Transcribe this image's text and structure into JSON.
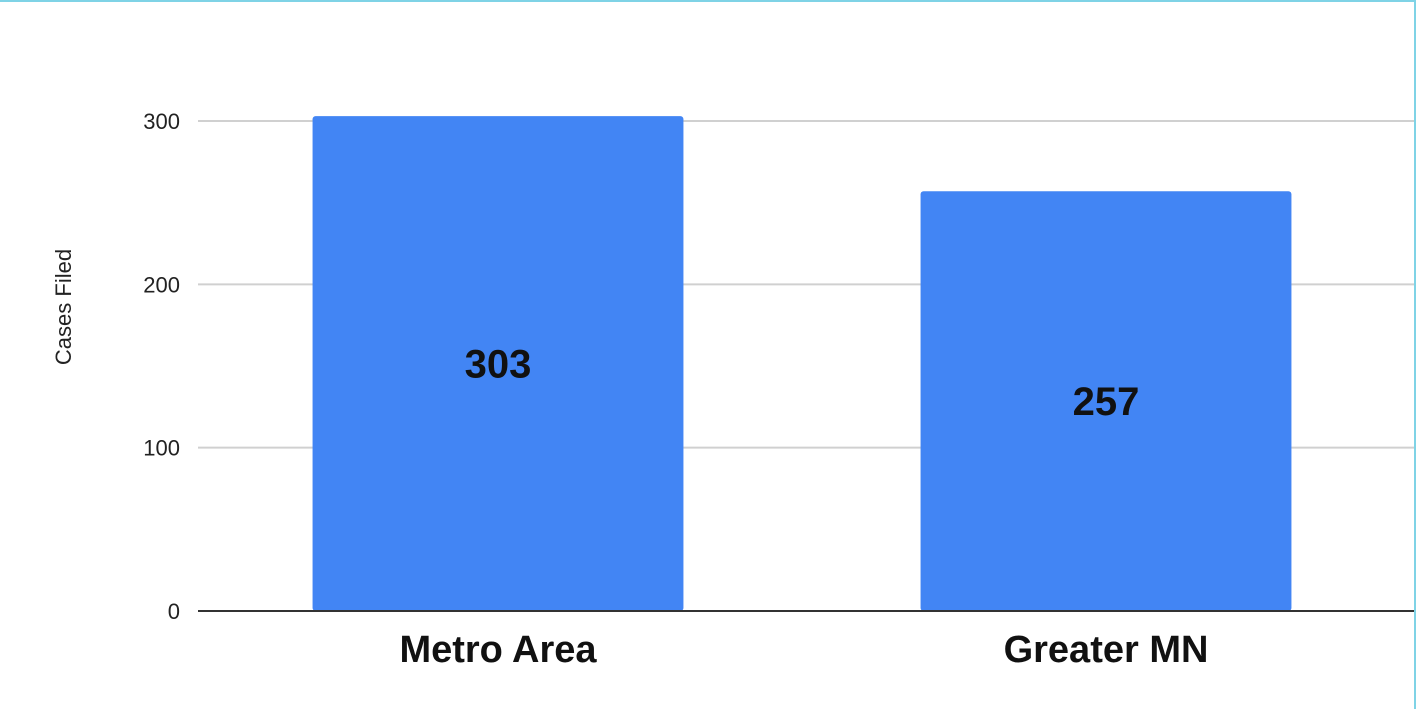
{
  "chart_data": {
    "type": "bar",
    "categories": [
      "Metro Area",
      "Greater MN"
    ],
    "values": [
      303,
      257
    ],
    "data_labels": [
      "303",
      "257"
    ],
    "title": "",
    "xlabel": "",
    "ylabel": "Cases Filed",
    "ylim": [
      0,
      300
    ],
    "yticks": [
      0,
      100,
      200,
      300
    ],
    "ytick_labels": [
      "0",
      "100",
      "200",
      "300"
    ],
    "grid": true,
    "legend": "none",
    "bar_color": "#4285f4",
    "grid_color": "#d0d0d0",
    "baseline_color": "#333333"
  }
}
